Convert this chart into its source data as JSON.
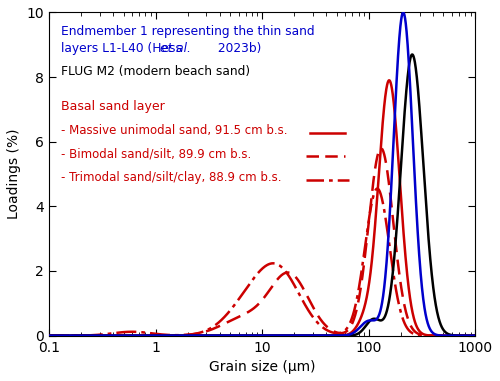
{
  "xlabel": "Grain size (μm)",
  "ylabel": "Loadings (%)",
  "xlim": [
    0.1,
    1000
  ],
  "ylim": [
    0,
    10
  ],
  "yticks": [
    0,
    2,
    4,
    6,
    8,
    10
  ],
  "background_color": "#ffffff",
  "em1_color": "#0000cc",
  "flug_color": "#000000",
  "red_color": "#cc0000"
}
